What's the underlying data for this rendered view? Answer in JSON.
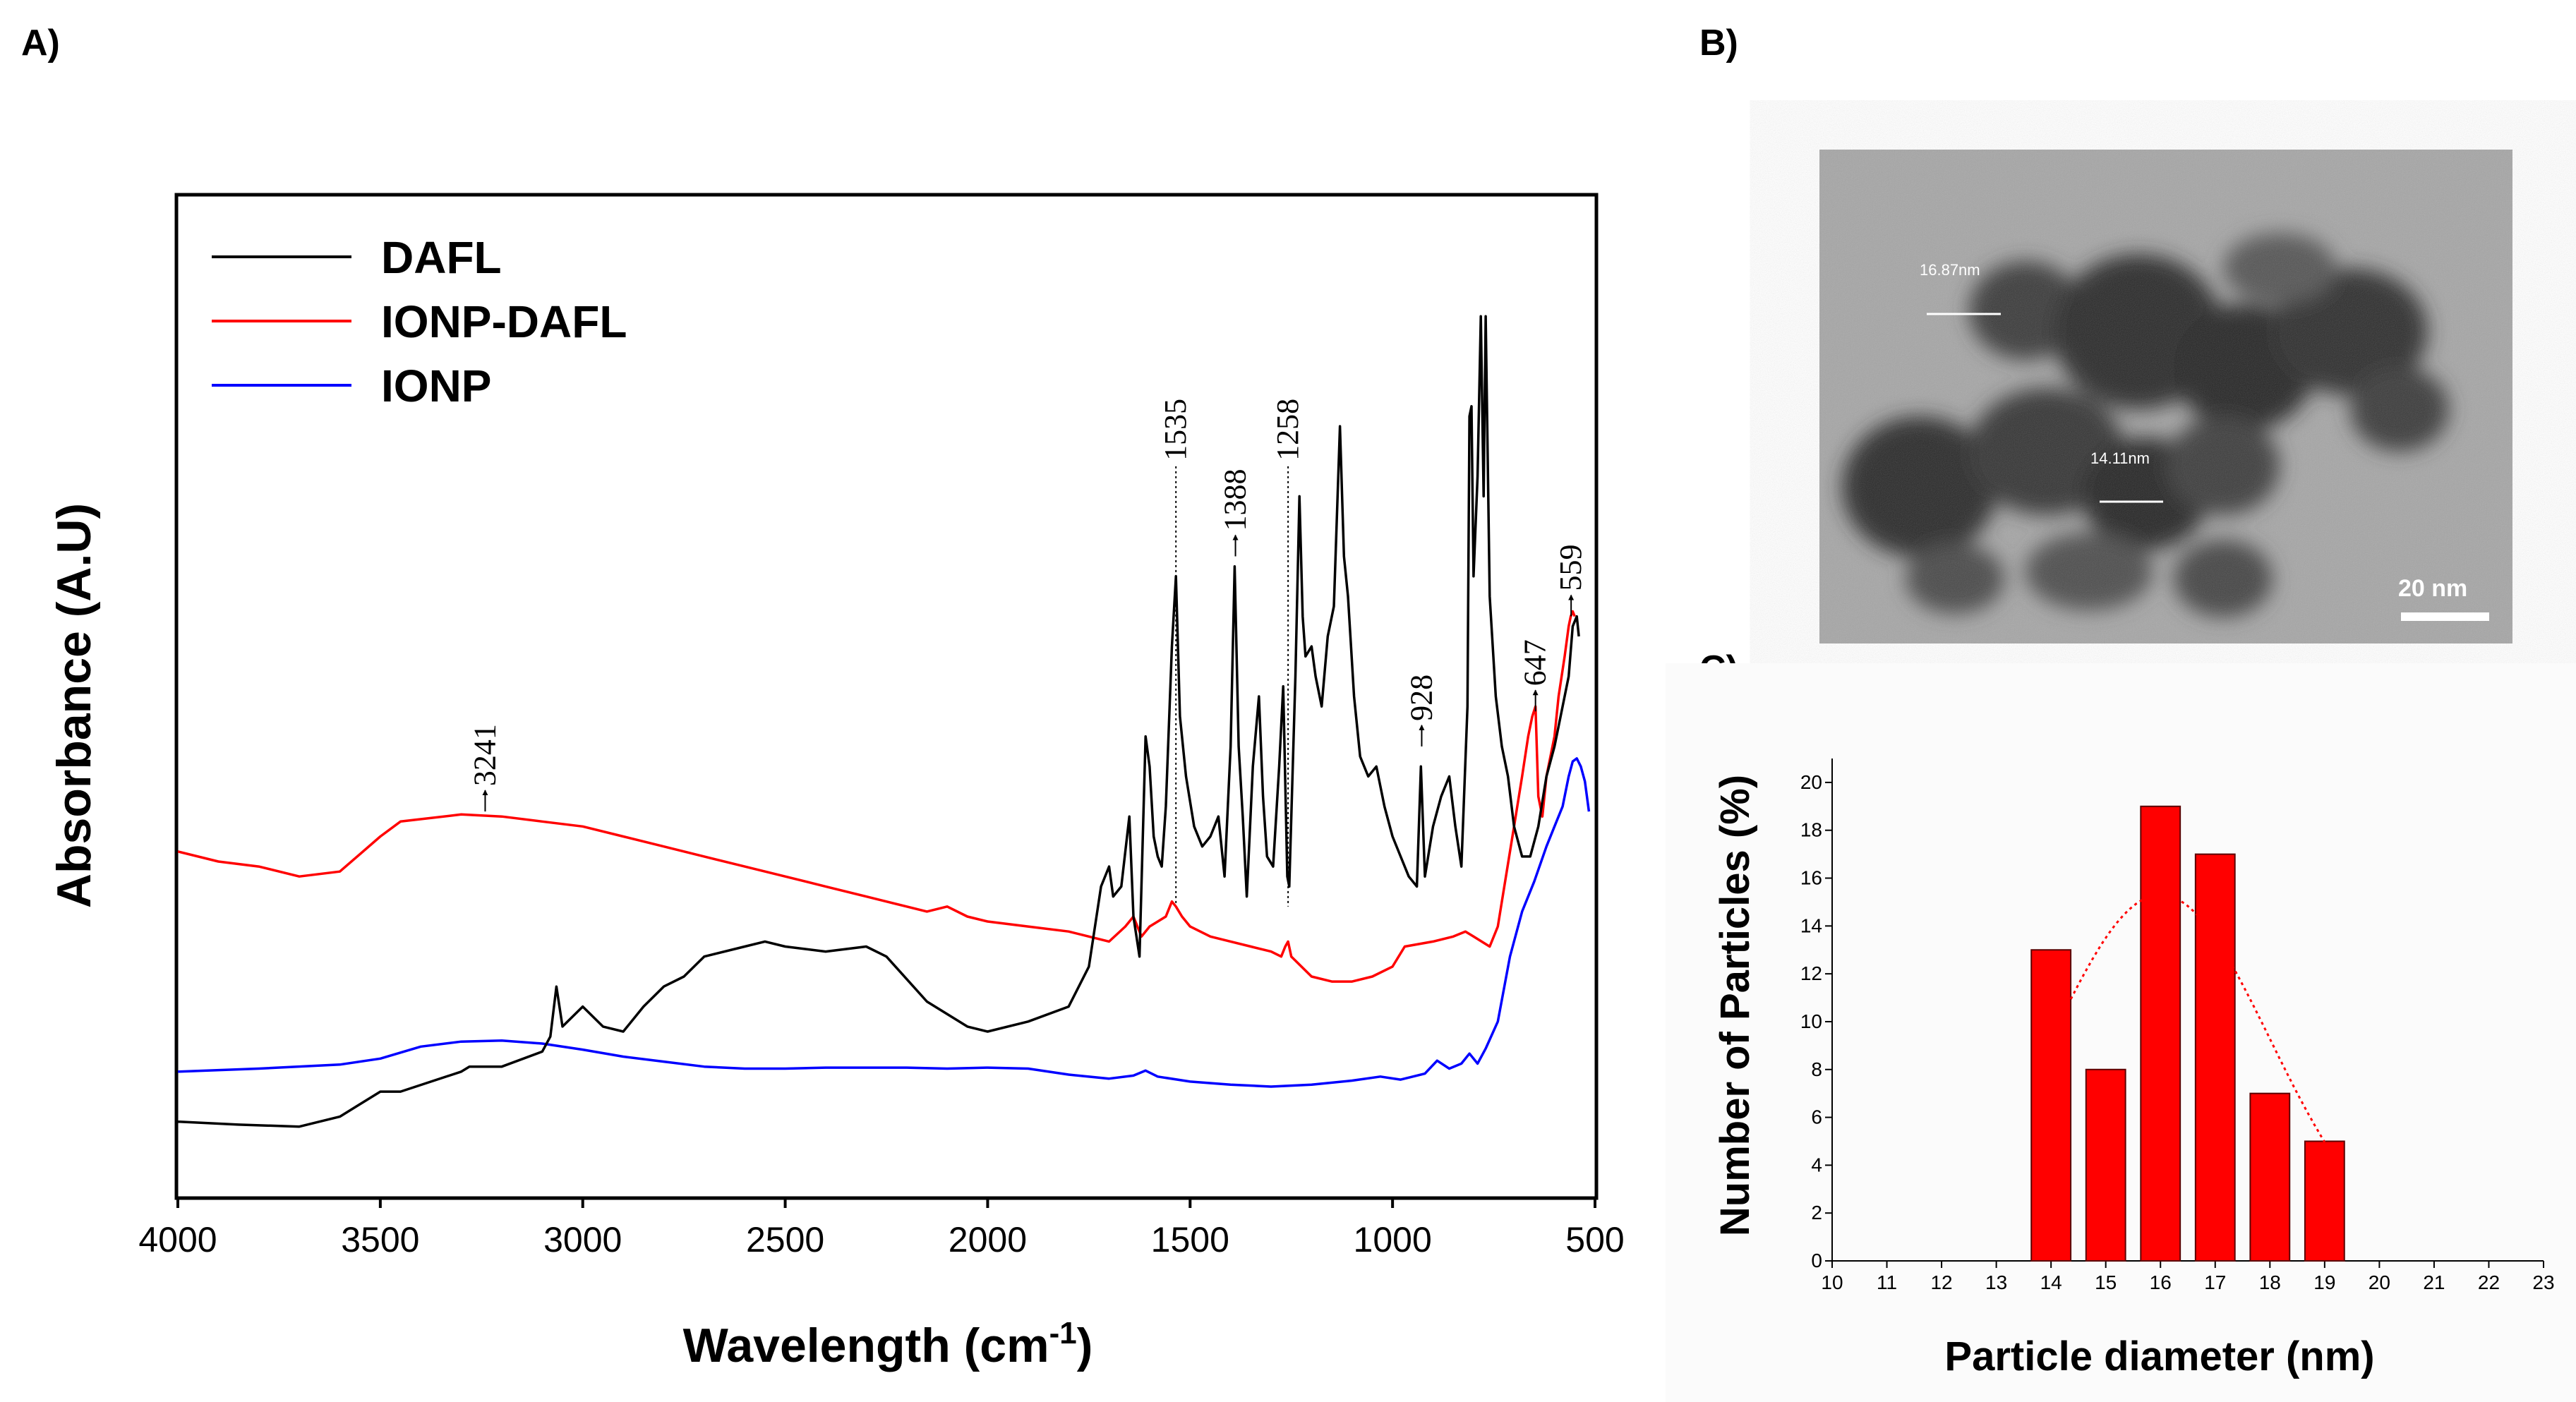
{
  "panels": {
    "a": "A)",
    "b": "B)",
    "c": "C)"
  },
  "colors": {
    "dafl": "#000000",
    "ionp_dafl": "#ff0000",
    "ionp": "#0000ff",
    "bar_fill": "#ff0000",
    "bar_stroke": "#5a0000"
  },
  "panel_b": {
    "annotations": [
      "16.87nm",
      "14.11nm"
    ],
    "scale_bar_label": "20 nm"
  },
  "chart_data": [
    {
      "id": "ftir",
      "type": "line",
      "title": "",
      "xlabel": "Wavelength (cm",
      "xlabel_sup": "-1",
      "xlabel_close": ")",
      "ylabel": "Absorbance (A.U)",
      "xlim": [
        4000,
        500
      ],
      "ylim": [
        0,
        100
      ],
      "x_reversed": true,
      "x_ticks": [
        "4000",
        "3500",
        "3000",
        "2500",
        "2000",
        "1500",
        "1000",
        "500"
      ],
      "legend": [
        "DAFL",
        "IONP-DAFL",
        "IONP"
      ],
      "legend_position": "top-left",
      "peak_labels": [
        {
          "x": 3241,
          "y": 38.5,
          "label": "3241",
          "vline": false
        },
        {
          "x": 1535,
          "y": 73,
          "label": "1535",
          "vline": true,
          "line_to": 29
        },
        {
          "x": 1388,
          "y": 64,
          "label": "1388",
          "vline": false
        },
        {
          "x": 1258,
          "y": 73,
          "label": "1258",
          "vline": true,
          "line_to": 29
        },
        {
          "x": 928,
          "y": 45,
          "label": "928",
          "vline": false
        },
        {
          "x": 647,
          "y": 48.5,
          "label": "647",
          "vline": false
        },
        {
          "x": 559,
          "y": 58,
          "label": "559",
          "vline": false
        }
      ],
      "series": [
        {
          "name": "DAFL",
          "points": [
            [
              4000,
              7.5
            ],
            [
              3850,
              7.2
            ],
            [
              3700,
              7.0
            ],
            [
              3600,
              8.0
            ],
            [
              3500,
              10.5
            ],
            [
              3450,
              10.5
            ],
            [
              3300,
              12.5
            ],
            [
              3280,
              13.0
            ],
            [
              3200,
              13.0
            ],
            [
              3100,
              14.5
            ],
            [
              3080,
              16
            ],
            [
              3065,
              21
            ],
            [
              3050,
              17
            ],
            [
              3000,
              19
            ],
            [
              2950,
              17
            ],
            [
              2900,
              16.5
            ],
            [
              2850,
              19
            ],
            [
              2800,
              21
            ],
            [
              2750,
              22
            ],
            [
              2700,
              24
            ],
            [
              2600,
              25
            ],
            [
              2550,
              25.5
            ],
            [
              2500,
              25
            ],
            [
              2400,
              24.5
            ],
            [
              2300,
              25
            ],
            [
              2250,
              24
            ],
            [
              2150,
              19.5
            ],
            [
              2050,
              17
            ],
            [
              2000,
              16.5
            ],
            [
              1900,
              17.5
            ],
            [
              1800,
              19
            ],
            [
              1750,
              23
            ],
            [
              1720,
              31
            ],
            [
              1700,
              33
            ],
            [
              1690,
              30
            ],
            [
              1670,
              31
            ],
            [
              1650,
              38
            ],
            [
              1640,
              28
            ],
            [
              1625,
              24
            ],
            [
              1610,
              46
            ],
            [
              1600,
              43
            ],
            [
              1590,
              36
            ],
            [
              1580,
              34
            ],
            [
              1570,
              33
            ],
            [
              1560,
              39
            ],
            [
              1545,
              55
            ],
            [
              1535,
              62
            ],
            [
              1525,
              48
            ],
            [
              1510,
              42
            ],
            [
              1490,
              37
            ],
            [
              1470,
              35
            ],
            [
              1450,
              36
            ],
            [
              1430,
              38
            ],
            [
              1415,
              32
            ],
            [
              1400,
              45
            ],
            [
              1390,
              63
            ],
            [
              1380,
              45
            ],
            [
              1370,
              38
            ],
            [
              1360,
              30
            ],
            [
              1345,
              43
            ],
            [
              1330,
              50
            ],
            [
              1320,
              40
            ],
            [
              1310,
              34
            ],
            [
              1295,
              33
            ],
            [
              1280,
              43
            ],
            [
              1270,
              51
            ],
            [
              1260,
              32
            ],
            [
              1255,
              31
            ],
            [
              1240,
              52
            ],
            [
              1230,
              70
            ],
            [
              1222,
              58
            ],
            [
              1215,
              54
            ],
            [
              1200,
              55
            ],
            [
              1190,
              52
            ],
            [
              1175,
              49
            ],
            [
              1160,
              56
            ],
            [
              1145,
              59
            ],
            [
              1130,
              77
            ],
            [
              1120,
              64
            ],
            [
              1110,
              60
            ],
            [
              1095,
              50
            ],
            [
              1080,
              44
            ],
            [
              1060,
              42
            ],
            [
              1040,
              43
            ],
            [
              1020,
              39
            ],
            [
              1000,
              36
            ],
            [
              980,
              34
            ],
            [
              960,
              32
            ],
            [
              940,
              31
            ],
            [
              930,
              43
            ],
            [
              920,
              32
            ],
            [
              900,
              37
            ],
            [
              880,
              40
            ],
            [
              860,
              42
            ],
            [
              845,
              37
            ],
            [
              830,
              33
            ],
            [
              815,
              49
            ],
            [
              810,
              78
            ],
            [
              805,
              79
            ],
            [
              800,
              62
            ],
            [
              790,
              72
            ],
            [
              782,
              88
            ],
            [
              775,
              70
            ],
            [
              770,
              88
            ],
            [
              760,
              60
            ],
            [
              745,
              50
            ],
            [
              730,
              45
            ],
            [
              715,
              42
            ],
            [
              700,
              37
            ],
            [
              680,
              34
            ],
            [
              660,
              34
            ],
            [
              640,
              37
            ],
            [
              620,
              42
            ],
            [
              600,
              45
            ],
            [
              580,
              49
            ],
            [
              565,
              52
            ],
            [
              555,
              57
            ],
            [
              545,
              58
            ],
            [
              540,
              56
            ]
          ]
        },
        {
          "name": "IONP-DAFL",
          "points": [
            [
              4000,
              34.5
            ],
            [
              3900,
              33.5
            ],
            [
              3800,
              33
            ],
            [
              3700,
              32
            ],
            [
              3600,
              32.5
            ],
            [
              3500,
              36
            ],
            [
              3450,
              37.5
            ],
            [
              3300,
              38.2
            ],
            [
              3200,
              38
            ],
            [
              3100,
              37.5
            ],
            [
              3000,
              37
            ],
            [
              2900,
              36
            ],
            [
              2800,
              35
            ],
            [
              2700,
              34
            ],
            [
              2600,
              33
            ],
            [
              2500,
              32
            ],
            [
              2400,
              31
            ],
            [
              2300,
              30
            ],
            [
              2200,
              29
            ],
            [
              2150,
              28.5
            ],
            [
              2100,
              29
            ],
            [
              2050,
              28
            ],
            [
              2000,
              27.5
            ],
            [
              1900,
              27
            ],
            [
              1800,
              26.5
            ],
            [
              1750,
              26
            ],
            [
              1700,
              25.5
            ],
            [
              1660,
              27
            ],
            [
              1640,
              28
            ],
            [
              1620,
              26
            ],
            [
              1600,
              27
            ],
            [
              1560,
              28
            ],
            [
              1545,
              29.5
            ],
            [
              1535,
              29
            ],
            [
              1520,
              28
            ],
            [
              1500,
              27
            ],
            [
              1450,
              26
            ],
            [
              1400,
              25.5
            ],
            [
              1350,
              25
            ],
            [
              1300,
              24.5
            ],
            [
              1275,
              24
            ],
            [
              1265,
              25
            ],
            [
              1258,
              25.5
            ],
            [
              1250,
              24
            ],
            [
              1200,
              22
            ],
            [
              1150,
              21.5
            ],
            [
              1100,
              21.5
            ],
            [
              1050,
              22
            ],
            [
              1000,
              23
            ],
            [
              970,
              25
            ],
            [
              900,
              25.5
            ],
            [
              850,
              26
            ],
            [
              820,
              26.5
            ],
            [
              800,
              26
            ],
            [
              760,
              25
            ],
            [
              740,
              27
            ],
            [
              720,
              32
            ],
            [
              700,
              37
            ],
            [
              680,
              42
            ],
            [
              665,
              46
            ],
            [
              655,
              48
            ],
            [
              647,
              49
            ],
            [
              640,
              40
            ],
            [
              630,
              38
            ],
            [
              620,
              42
            ],
            [
              600,
              46
            ],
            [
              590,
              50
            ],
            [
              575,
              54
            ],
            [
              565,
              57
            ],
            [
              560,
              58
            ],
            [
              555,
              58.5
            ],
            [
              550,
              58
            ]
          ]
        },
        {
          "name": "IONP",
          "points": [
            [
              4000,
              12.5
            ],
            [
              3800,
              12.8
            ],
            [
              3600,
              13.2
            ],
            [
              3500,
              13.8
            ],
            [
              3400,
              15
            ],
            [
              3300,
              15.5
            ],
            [
              3200,
              15.6
            ],
            [
              3100,
              15.3
            ],
            [
              3000,
              14.7
            ],
            [
              2900,
              14
            ],
            [
              2800,
              13.5
            ],
            [
              2700,
              13
            ],
            [
              2600,
              12.8
            ],
            [
              2500,
              12.8
            ],
            [
              2400,
              12.9
            ],
            [
              2300,
              12.9
            ],
            [
              2200,
              12.9
            ],
            [
              2100,
              12.8
            ],
            [
              2000,
              12.9
            ],
            [
              1900,
              12.8
            ],
            [
              1800,
              12.2
            ],
            [
              1700,
              11.8
            ],
            [
              1640,
              12.1
            ],
            [
              1610,
              12.6
            ],
            [
              1580,
              12
            ],
            [
              1500,
              11.5
            ],
            [
              1400,
              11.2
            ],
            [
              1300,
              11
            ],
            [
              1200,
              11.2
            ],
            [
              1100,
              11.6
            ],
            [
              1030,
              12
            ],
            [
              980,
              11.7
            ],
            [
              920,
              12.3
            ],
            [
              890,
              13.6
            ],
            [
              860,
              12.8
            ],
            [
              830,
              13.3
            ],
            [
              810,
              14.3
            ],
            [
              790,
              13.3
            ],
            [
              770,
              14.8
            ],
            [
              740,
              17.5
            ],
            [
              710,
              24
            ],
            [
              680,
              28.5
            ],
            [
              650,
              31.5
            ],
            [
              620,
              35
            ],
            [
              600,
              37
            ],
            [
              580,
              39
            ],
            [
              565,
              42
            ],
            [
              555,
              43.5
            ],
            [
              545,
              43.8
            ],
            [
              535,
              43
            ],
            [
              525,
              41.5
            ],
            [
              515,
              38.5
            ]
          ]
        }
      ]
    },
    {
      "id": "size-distribution",
      "type": "bar",
      "title": "",
      "xlabel": "Particle diameter (nm)",
      "ylabel": "Number of Particles (%)",
      "xlim": [
        10,
        23
      ],
      "ylim": [
        0,
        21
      ],
      "x_ticks": [
        "10",
        "11",
        "12",
        "13",
        "14",
        "15",
        "16",
        "17",
        "18",
        "19",
        "20",
        "21",
        "22",
        "23"
      ],
      "y_ticks": [
        "0",
        "2",
        "4",
        "6",
        "8",
        "10",
        "12",
        "14",
        "16",
        "18",
        "20"
      ],
      "bars": [
        {
          "center": 14,
          "value": 13
        },
        {
          "center": 15,
          "value": 8
        },
        {
          "center": 16,
          "value": 19
        },
        {
          "center": 17,
          "value": 17
        },
        {
          "center": 18,
          "value": 7
        },
        {
          "center": 19,
          "value": 5
        }
      ],
      "fit_curve": {
        "type": "gaussian",
        "mean": 16.0,
        "sigma": 2.0,
        "amplitude": 15.3,
        "from": 14,
        "to": 19,
        "color": "#ff0000",
        "style": "dotted"
      }
    }
  ]
}
